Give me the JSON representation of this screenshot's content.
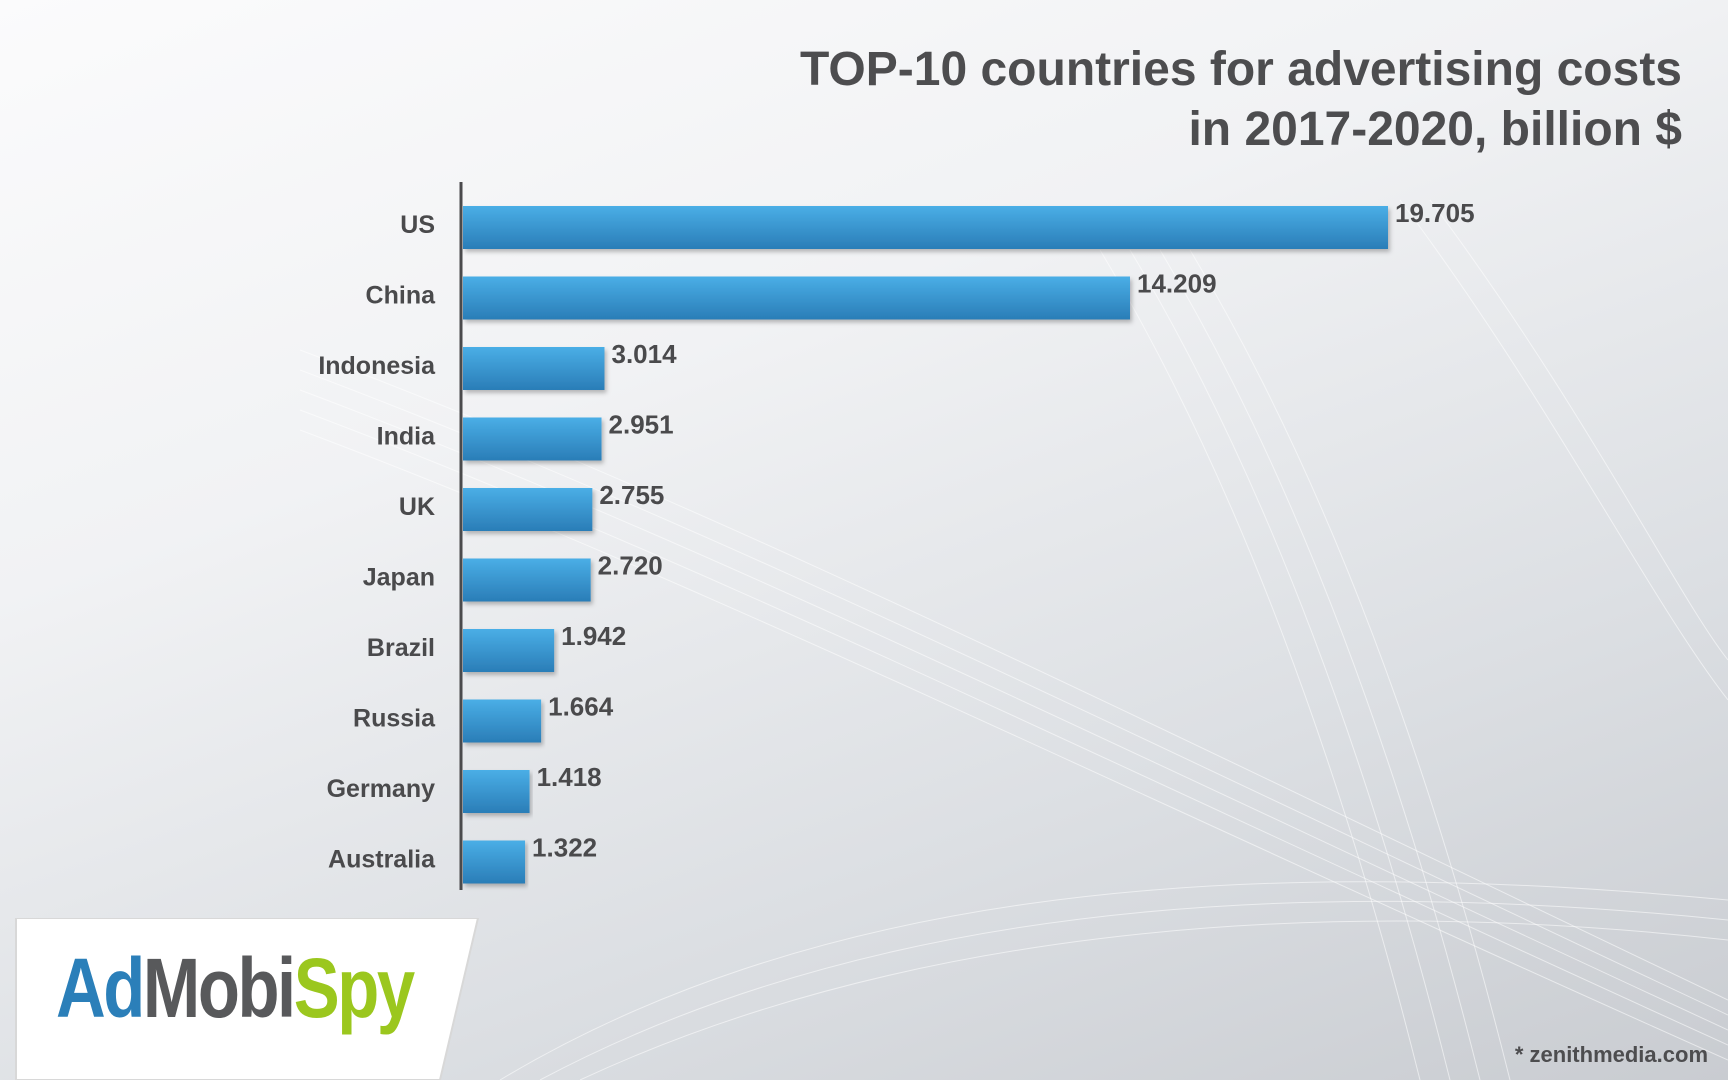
{
  "chart_data": {
    "type": "bar",
    "orientation": "horizontal",
    "title_line1": "TOP-10 countries for advertising costs",
    "title_line2": "in 2017-2020, billion $",
    "categories": [
      "US",
      "China",
      "Indonesia",
      "India",
      "UK",
      "Japan",
      "Brazil",
      "Russia",
      "Germany",
      "Australia"
    ],
    "values": [
      19.705,
      14.209,
      3.014,
      2.951,
      2.755,
      2.72,
      1.942,
      1.664,
      1.418,
      1.322
    ],
    "value_labels": [
      "19.705",
      "14.209",
      "3.014",
      "2.951",
      "2.755",
      "2.720",
      "1.942",
      "1.664",
      "1.418",
      "1.322"
    ],
    "xlim": [
      0,
      19.705
    ],
    "grid": false,
    "legend": "none",
    "bar_color_top": "#4aaee6",
    "bar_color_bottom": "#2a7db7"
  },
  "logo": {
    "part1": "Ad",
    "part2": "Mobi",
    "part3": "Spy"
  },
  "source": "* zenithmedia.com"
}
